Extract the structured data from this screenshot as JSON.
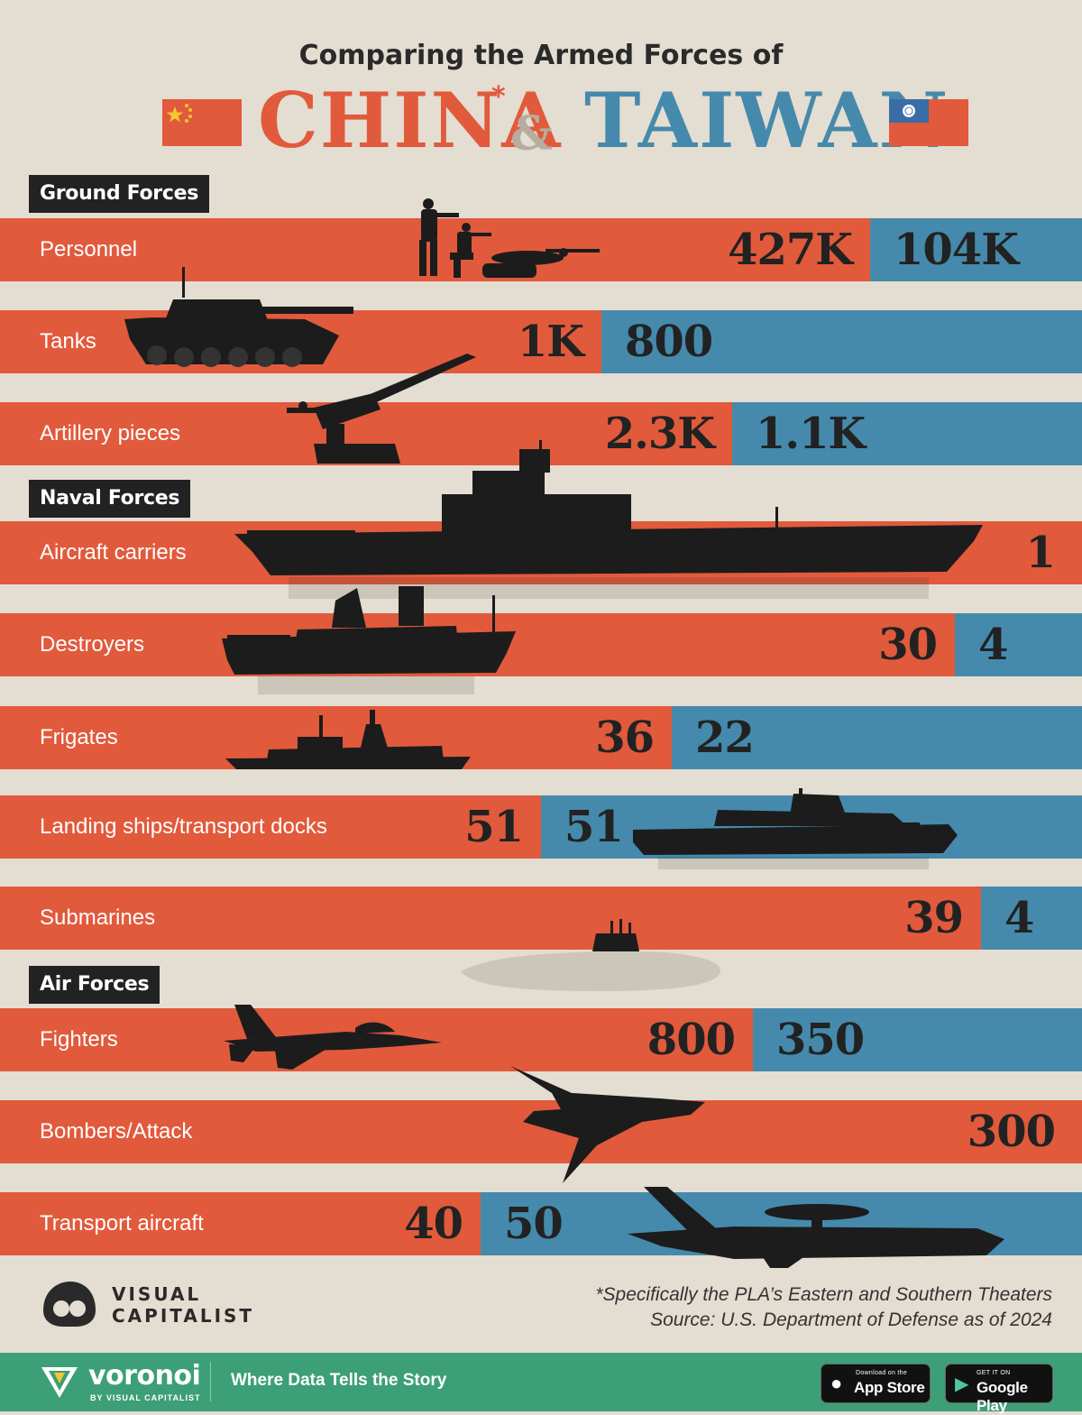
{
  "header": {
    "subtitle": "Comparing the Armed Forces of",
    "left_title": "CHINA",
    "asterisk": "*",
    "ampersand": "&",
    "right_title": "TAIWAN"
  },
  "sections": {
    "ground": "Ground Forces",
    "naval": "Naval Forces",
    "air": "Air Forces"
  },
  "colors": {
    "china": "#e15a3c",
    "taiwan": "#458aac",
    "background": "#e4ddd1",
    "brand_green": "#3d9f77"
  },
  "chart_data": {
    "type": "bar",
    "orientation": "horizontal-stacked",
    "series": [
      {
        "name": "CHINA",
        "color": "#e15a3c"
      },
      {
        "name": "TAIWAN",
        "color": "#458aac"
      }
    ],
    "rows": [
      {
        "category": "Personnel",
        "china": 427000,
        "taiwan": 104000,
        "china_label": "427K",
        "taiwan_label": "104K"
      },
      {
        "category": "Tanks",
        "china": 1000,
        "taiwan": 800,
        "china_label": "1K",
        "taiwan_label": "800"
      },
      {
        "category": "Artillery pieces",
        "china": 2300,
        "taiwan": 1100,
        "china_label": "2.3K",
        "taiwan_label": "1.1K"
      },
      {
        "category": "Aircraft carriers",
        "china": 1,
        "taiwan": 0,
        "china_label": "1",
        "taiwan_label": ""
      },
      {
        "category": "Destroyers",
        "china": 30,
        "taiwan": 4,
        "china_label": "30",
        "taiwan_label": "4"
      },
      {
        "category": "Frigates",
        "china": 36,
        "taiwan": 22,
        "china_label": "36",
        "taiwan_label": "22"
      },
      {
        "category": "Landing ships/transport docks",
        "china": 51,
        "taiwan": 51,
        "china_label": "51",
        "taiwan_label": "51"
      },
      {
        "category": "Submarines",
        "china": 39,
        "taiwan": 4,
        "china_label": "39",
        "taiwan_label": "4"
      },
      {
        "category": "Fighters",
        "china": 800,
        "taiwan": 350,
        "china_label": "800",
        "taiwan_label": "350"
      },
      {
        "category": "Bombers/Attack",
        "china": 300,
        "taiwan": 0,
        "china_label": "300",
        "taiwan_label": ""
      },
      {
        "category": "Transport aircraft",
        "china": 40,
        "taiwan": 50,
        "china_label": "40",
        "taiwan_label": "50"
      }
    ]
  },
  "footer": {
    "note": "*Specifically the PLA’s Eastern and Southern Theaters",
    "source": "Source: U.S. Department of Defense as of 2024",
    "logo_line1": "VISUAL",
    "logo_line2": "CAPITALIST"
  },
  "bottom_bar": {
    "brand": "voronoi",
    "brand_sub": "BY VISUAL CAPITALIST",
    "tagline": "Where Data Tells the Story",
    "app_store_small": "Download on the",
    "app_store_big": "App Store",
    "google_small": "GET IT ON",
    "google_big": "Google Play"
  }
}
